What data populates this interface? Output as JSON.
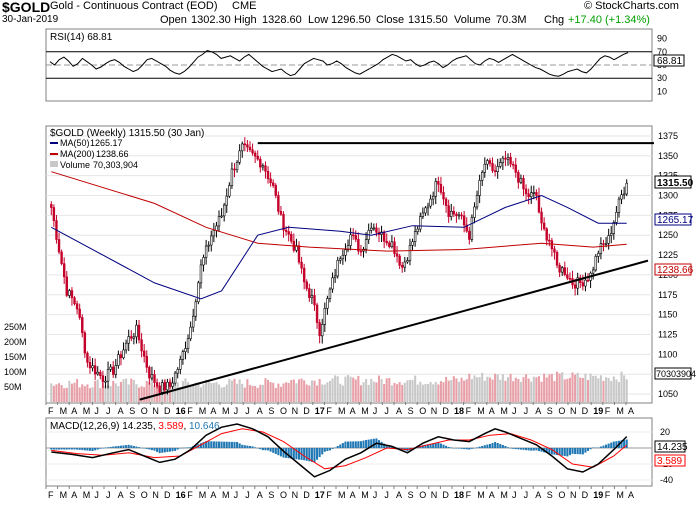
{
  "header": {
    "symbol": "$GOLD",
    "instrument": "Gold - Continuous Contract (EOD)",
    "exchange": "CME",
    "brand": "© StockCharts.com",
    "date": "30-Jan-2019",
    "open_label": "Open",
    "open": "1302.30",
    "high_label": "High",
    "high": "1328.60",
    "low_label": "Low",
    "low": "1296.50",
    "close_label": "Close",
    "close": "1315.50",
    "volume_label": "Volume",
    "volume": "70.3M",
    "chg_label": "Chg",
    "chg": "+17.40 (+1.34%)",
    "chg_color": "#00a000"
  },
  "chart_data": [
    {
      "type": "line",
      "title": "RSI(14) 68.81",
      "series": [
        {
          "name": "RSI(14)",
          "color": "#000000",
          "values": [
            55,
            50,
            58,
            62,
            56,
            48,
            52,
            60,
            55,
            50,
            44,
            47,
            52,
            56,
            58,
            54,
            48,
            44,
            40,
            43,
            50,
            58,
            60,
            56,
            52,
            48,
            42,
            38,
            36,
            40,
            46,
            54,
            62,
            66,
            72,
            70,
            66,
            60,
            62,
            64,
            60,
            56,
            62,
            66,
            60,
            54,
            48,
            44,
            40,
            42,
            44,
            38,
            34,
            36,
            44,
            52,
            56,
            60,
            58,
            56,
            50,
            52,
            56,
            52,
            46,
            42,
            38,
            36,
            40,
            44,
            48,
            52,
            58,
            62,
            66,
            64,
            60,
            56,
            58,
            52,
            48,
            50,
            54,
            56,
            52,
            46,
            50,
            56,
            60,
            62,
            64,
            58,
            52,
            50,
            56,
            60,
            58,
            54,
            58,
            62,
            66,
            62,
            58,
            54,
            50,
            46,
            44,
            40,
            36,
            34,
            33,
            36,
            40,
            42,
            44,
            40,
            38,
            44,
            52,
            60,
            64,
            62,
            58,
            62,
            66,
            68.81
          ]
        }
      ],
      "ylim": [
        0,
        100
      ],
      "yticks": [
        10,
        30,
        50,
        70,
        90
      ],
      "ref_lines": [
        30,
        50,
        70
      ],
      "last_value": "68.81"
    },
    {
      "type": "candlestick",
      "title": "$GOLD (Weekly) 1315.50 (30 Jan)",
      "frequency": "Weekly",
      "x": [
        "F",
        "M",
        "A",
        "M",
        "J",
        "J",
        "A",
        "S",
        "O",
        "N",
        "D",
        "16",
        "F",
        "M",
        "A",
        "M",
        "J",
        "J",
        "A",
        "S",
        "O",
        "N",
        "D",
        "17",
        "F",
        "M",
        "A",
        "M",
        "J",
        "J",
        "A",
        "S",
        "O",
        "N",
        "D",
        "18",
        "F",
        "M",
        "A",
        "M",
        "J",
        "J",
        "A",
        "S",
        "O",
        "N",
        "D",
        "19",
        "F",
        "M",
        "A"
      ],
      "ylim": [
        1040,
        1385
      ],
      "yticks": [
        1050,
        1075,
        1100,
        1125,
        1150,
        1175,
        1200,
        1225,
        1250,
        1275,
        1300,
        1325,
        1350,
        1375
      ],
      "close_path": [
        [
          0,
          1285
        ],
        [
          6,
          1180
        ],
        [
          10,
          1160
        ],
        [
          14,
          1090
        ],
        [
          20,
          1070
        ],
        [
          24,
          1080
        ],
        [
          30,
          1120
        ],
        [
          33,
          1130
        ],
        [
          38,
          1075
        ],
        [
          42,
          1058
        ],
        [
          46,
          1060
        ],
        [
          50,
          1090
        ],
        [
          54,
          1135
        ],
        [
          58,
          1210
        ],
        [
          62,
          1250
        ],
        [
          66,
          1275
        ],
        [
          70,
          1330
        ],
        [
          74,
          1360
        ],
        [
          78,
          1350
        ],
        [
          82,
          1340
        ],
        [
          86,
          1310
        ],
        [
          89,
          1270
        ],
        [
          92,
          1250
        ],
        [
          95,
          1230
        ],
        [
          98,
          1190
        ],
        [
          101,
          1170
        ],
        [
          104,
          1130
        ],
        [
          108,
          1180
        ],
        [
          112,
          1225
        ],
        [
          116,
          1250
        ],
        [
          120,
          1230
        ],
        [
          124,
          1265
        ],
        [
          128,
          1250
        ],
        [
          132,
          1240
        ],
        [
          136,
          1210
        ],
        [
          138,
          1225
        ],
        [
          142,
          1260
        ],
        [
          146,
          1290
        ],
        [
          150,
          1320
        ],
        [
          154,
          1280
        ],
        [
          158,
          1275
        ],
        [
          162,
          1250
        ],
        [
          165,
          1300
        ],
        [
          168,
          1340
        ],
        [
          172,
          1330
        ],
        [
          176,
          1345
        ],
        [
          180,
          1330
        ],
        [
          184,
          1300
        ],
        [
          188,
          1300
        ],
        [
          190,
          1260
        ],
        [
          193,
          1245
        ],
        [
          196,
          1210
        ],
        [
          199,
          1205
        ],
        [
          202,
          1190
        ],
        [
          205,
          1190
        ],
        [
          209,
          1200
        ],
        [
          212,
          1230
        ],
        [
          216,
          1245
        ],
        [
          219,
          1280
        ],
        [
          221,
          1300
        ],
        [
          223,
          1315.5
        ]
      ],
      "series": [
        {
          "name": "MA(50)",
          "value_label": "1265.17",
          "color": "#000080",
          "values": [
            [
              0,
              1260
            ],
            [
              20,
              1225
            ],
            [
              40,
              1190
            ],
            [
              58,
              1170
            ],
            [
              66,
              1180
            ],
            [
              80,
              1250
            ],
            [
              92,
              1260
            ],
            [
              112,
              1255
            ],
            [
              124,
              1250
            ],
            [
              140,
              1262
            ],
            [
              160,
              1260
            ],
            [
              176,
              1285
            ],
            [
              190,
              1300
            ],
            [
              200,
              1285
            ],
            [
              212,
              1265.17
            ],
            [
              223,
              1265.17
            ]
          ]
        },
        {
          "name": "MA(200)",
          "value_label": "1238.66",
          "color": "#c00000",
          "values": [
            [
              0,
              1330
            ],
            [
              40,
              1290
            ],
            [
              60,
              1260
            ],
            [
              80,
              1240
            ],
            [
              100,
              1235
            ],
            [
              130,
              1230
            ],
            [
              160,
              1232
            ],
            [
              190,
              1240
            ],
            [
              210,
              1235
            ],
            [
              223,
              1238.66
            ]
          ]
        },
        {
          "name": "Volume",
          "value_label": "70,303,904",
          "color": "#c8c8c8"
        }
      ],
      "annotations": [
        {
          "type": "horizontal resistance",
          "value": 1366,
          "x": [
            80,
            223
          ]
        },
        {
          "type": "rising trendline",
          "points": [
            [
              42,
              1043
            ],
            [
              223,
              1218
            ]
          ]
        }
      ],
      "price_label": "1315.50",
      "ma50_label": "1265.17",
      "ma200_label": "1238.66",
      "volume_ticks": [
        "250M",
        "200M",
        "150M",
        "100M",
        "50M"
      ],
      "volume_label": "70303904"
    },
    {
      "type": "line",
      "title": "MACD(12,26,9)",
      "macd_value": "14.235",
      "signal_value": "3.589",
      "hist_value": "10.646",
      "yticks": [
        20,
        0,
        -20,
        -40
      ],
      "ylim": [
        -45,
        35
      ],
      "series": [
        {
          "name": "MACD",
          "color": "#000000",
          "values": [
            [
              0,
              -5
            ],
            [
              8,
              -8
            ],
            [
              16,
              -12
            ],
            [
              24,
              -6
            ],
            [
              30,
              -2
            ],
            [
              36,
              -10
            ],
            [
              42,
              -18
            ],
            [
              48,
              -14
            ],
            [
              54,
              -2
            ],
            [
              60,
              16
            ],
            [
              66,
              26
            ],
            [
              72,
              30
            ],
            [
              78,
              24
            ],
            [
              84,
              14
            ],
            [
              90,
              -4
            ],
            [
              96,
              -20
            ],
            [
              102,
              -36
            ],
            [
              108,
              -28
            ],
            [
              114,
              -14
            ],
            [
              120,
              -6
            ],
            [
              126,
              6
            ],
            [
              132,
              2
            ],
            [
              138,
              -6
            ],
            [
              144,
              6
            ],
            [
              150,
              14
            ],
            [
              156,
              10
            ],
            [
              162,
              8
            ],
            [
              168,
              18
            ],
            [
              172,
              24
            ],
            [
              176,
              20
            ],
            [
              182,
              12
            ],
            [
              188,
              4
            ],
            [
              194,
              -10
            ],
            [
              200,
              -26
            ],
            [
              206,
              -30
            ],
            [
              212,
              -20
            ],
            [
              218,
              -2
            ],
            [
              223,
              14.235
            ]
          ]
        },
        {
          "name": "Signal",
          "color": "#ff0000",
          "values": [
            [
              0,
              -3
            ],
            [
              10,
              -7
            ],
            [
              20,
              -9
            ],
            [
              30,
              -6
            ],
            [
              40,
              -12
            ],
            [
              50,
              -10
            ],
            [
              58,
              4
            ],
            [
              66,
              18
            ],
            [
              74,
              24
            ],
            [
              82,
              20
            ],
            [
              90,
              8
            ],
            [
              98,
              -10
            ],
            [
              106,
              -26
            ],
            [
              114,
              -22
            ],
            [
              122,
              -12
            ],
            [
              130,
              0
            ],
            [
              138,
              -2
            ],
            [
              146,
              4
            ],
            [
              154,
              10
            ],
            [
              162,
              10
            ],
            [
              170,
              16
            ],
            [
              178,
              18
            ],
            [
              186,
              10
            ],
            [
              194,
              -2
            ],
            [
              202,
              -20
            ],
            [
              210,
              -24
            ],
            [
              218,
              -10
            ],
            [
              223,
              3.589
            ]
          ]
        }
      ]
    }
  ]
}
